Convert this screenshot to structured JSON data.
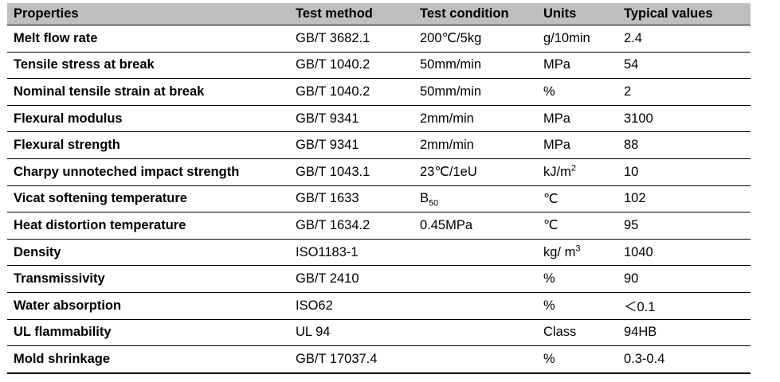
{
  "table": {
    "headers": [
      "Properties",
      "Test method",
      "Test condition",
      "Units",
      "Typical values"
    ],
    "rows": [
      {
        "property": "Melt flow rate",
        "method": "GB/T 3682.1",
        "condition": "200℃/5kg",
        "units": "g/10min",
        "value": "2.4"
      },
      {
        "property": "Tensile stress at break",
        "method": "GB/T 1040.2",
        "condition": "50mm/min",
        "units": "MPa",
        "value": "54"
      },
      {
        "property": "Nominal tensile strain at break",
        "method": "GB/T 1040.2",
        "condition": "50mm/min",
        "units": "%",
        "value": "2"
      },
      {
        "property": "Flexural modulus",
        "method": "GB/T 9341",
        "condition": "2mm/min",
        "units": "MPa",
        "value": "3100"
      },
      {
        "property": "Flexural strength",
        "method": "GB/T 9341",
        "condition": "2mm/min",
        "units": "MPa",
        "value": "88"
      },
      {
        "property": "Charpy unnoteched impact strength",
        "method": "GB/T 1043.1",
        "condition": "23℃/1eU",
        "units_base": "kJ/m",
        "units_sup": "2",
        "value": "10"
      },
      {
        "property": "Vicat softening temperature",
        "method": "GB/T 1633",
        "condition_base": "B",
        "condition_sub": "50",
        "units": "℃",
        "value": "102"
      },
      {
        "property": "Heat distortion temperature",
        "method": "GB/T 1634.2",
        "condition": "0.45MPa",
        "units": "℃",
        "value": "95"
      },
      {
        "property": "Density",
        "method": "ISO1183-1",
        "condition": "",
        "units_base": "kg/ m",
        "units_sup": "3",
        "value": "1040"
      },
      {
        "property": "Transmissivity",
        "method": "GB/T 2410",
        "condition": "",
        "units": "%",
        "value": "90"
      },
      {
        "property": "Water absorption",
        "method": "ISO62",
        "condition": "",
        "units": "%",
        "value": "＜0.1"
      },
      {
        "property": "UL flammability",
        "method": "UL 94",
        "condition": "",
        "units": "Class",
        "value": "94HB"
      },
      {
        "property": "Mold shrinkage",
        "method": "GB/T 17037.4",
        "condition": "",
        "units": "%",
        "value": "0.3-0.4"
      }
    ]
  }
}
